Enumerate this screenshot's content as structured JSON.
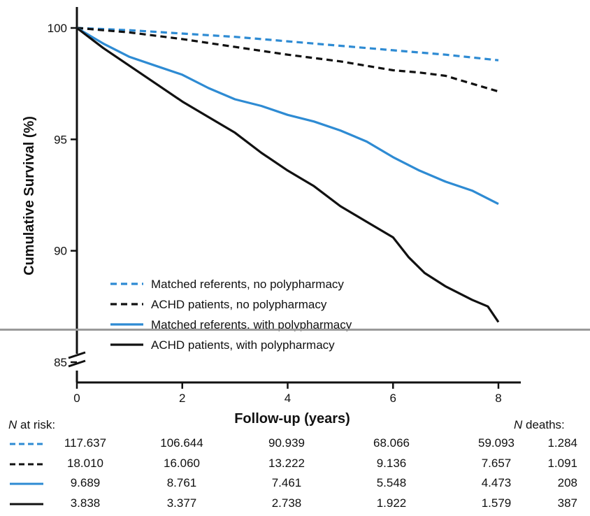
{
  "chart_data": {
    "type": "line",
    "xlabel": "Follow-up (years)",
    "ylabel": "Cumulative Survival (%)",
    "xlim": [
      0,
      8
    ],
    "ylim": [
      85,
      100
    ],
    "x_ticks": [
      "0",
      "2",
      "4",
      "6",
      "8"
    ],
    "y_ticks": [
      "85",
      "90",
      "95",
      "100"
    ],
    "axis_break": true,
    "legend_position": "bottom-left",
    "series": [
      {
        "name": "Matched referents, no polypharmacy",
        "color": "#2e8bd3",
        "dash": true,
        "x": [
          0,
          1,
          2,
          3,
          4,
          5,
          6,
          7,
          8
        ],
        "y": [
          100,
          99.9,
          99.75,
          99.6,
          99.4,
          99.2,
          99.0,
          98.8,
          98.55
        ]
      },
      {
        "name": "ACHD patients, no polypharmacy",
        "color": "#111111",
        "dash": true,
        "x": [
          0,
          1,
          2,
          3,
          4,
          5,
          6,
          6.5,
          7,
          7.5,
          8
        ],
        "y": [
          100,
          99.8,
          99.5,
          99.15,
          98.8,
          98.5,
          98.1,
          98.0,
          97.85,
          97.5,
          97.15
        ]
      },
      {
        "name": "Matched referents, with polypharmacy",
        "color": "#2e8bd3",
        "dash": false,
        "x": [
          0,
          0.5,
          1,
          1.5,
          2,
          2.5,
          3,
          3.5,
          4,
          4.5,
          5,
          5.5,
          6,
          6.5,
          7,
          7.5,
          8
        ],
        "y": [
          100,
          99.3,
          98.7,
          98.3,
          97.9,
          97.3,
          96.8,
          96.5,
          96.1,
          95.8,
          95.4,
          94.9,
          94.2,
          93.6,
          93.1,
          92.7,
          92.1
        ]
      },
      {
        "name": "ACHD patients, with polypharmacy",
        "color": "#111111",
        "dash": false,
        "x": [
          0,
          0.5,
          1,
          1.5,
          2,
          2.5,
          3,
          3.5,
          4,
          4.5,
          5,
          5.5,
          6,
          6.3,
          6.6,
          7,
          7.5,
          7.8,
          8
        ],
        "y": [
          100,
          99.1,
          98.3,
          97.5,
          96.7,
          96.0,
          95.3,
          94.4,
          93.6,
          92.9,
          92.0,
          91.3,
          90.6,
          89.7,
          89.0,
          88.4,
          87.8,
          87.5,
          86.8
        ]
      }
    ]
  },
  "risk_table": {
    "n_at_risk_n": "N",
    "n_at_risk_label": " at risk:",
    "n_deaths_n": "N",
    "n_deaths_label": " deaths:",
    "rows": [
      {
        "color": "#2e8bd3",
        "dash": true,
        "values": [
          "117.637",
          "106.644",
          "90.939",
          "68.066",
          "59.093"
        ],
        "deaths": "1.284"
      },
      {
        "color": "#111111",
        "dash": true,
        "values": [
          "18.010",
          "16.060",
          "13.222",
          "9.136",
          "7.657"
        ],
        "deaths": "1.091"
      },
      {
        "color": "#2e8bd3",
        "dash": false,
        "values": [
          "9.689",
          "8.761",
          "7.461",
          "5.548",
          "4.473"
        ],
        "deaths": "208"
      },
      {
        "color": "#111111",
        "dash": false,
        "values": [
          "3.838",
          "3.377",
          "2.738",
          "1.922",
          "1.579"
        ],
        "deaths": "387"
      }
    ]
  }
}
